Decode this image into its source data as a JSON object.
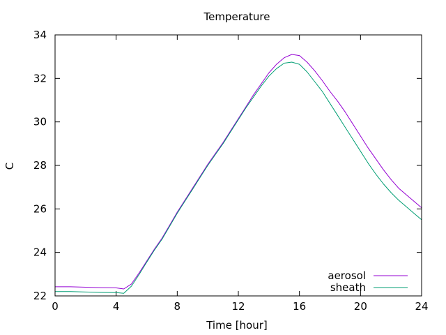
{
  "chart_data": {
    "type": "line",
    "title": "Temperature",
    "xlabel": "Time [hour]",
    "ylabel": "C",
    "xlim": [
      0,
      24
    ],
    "ylim": [
      22,
      34
    ],
    "xticks": [
      0,
      4,
      8,
      12,
      16,
      20,
      24
    ],
    "yticks": [
      22,
      24,
      26,
      28,
      30,
      32,
      34
    ],
    "grid": false,
    "legend_position": "bottom-right",
    "series": [
      {
        "name": "aerosol",
        "color": "#9400d3",
        "x": [
          0,
          1,
          2,
          3,
          4,
          4.5,
          5,
          5.5,
          6,
          6.5,
          7,
          7.5,
          8,
          8.5,
          9,
          9.5,
          10,
          10.5,
          11,
          11.5,
          12,
          12.5,
          13,
          13.5,
          14,
          14.5,
          15,
          15.5,
          16,
          16.5,
          17,
          17.5,
          18,
          18.5,
          19,
          19.5,
          20,
          20.5,
          21,
          21.5,
          22,
          22.5,
          23,
          23.5,
          24
        ],
        "y": [
          22.42,
          22.42,
          22.4,
          22.38,
          22.37,
          22.32,
          22.55,
          23.05,
          23.6,
          24.15,
          24.65,
          25.25,
          25.85,
          26.4,
          26.95,
          27.5,
          28.05,
          28.55,
          29.05,
          29.6,
          30.15,
          30.7,
          31.25,
          31.75,
          32.25,
          32.65,
          32.95,
          33.1,
          33.05,
          32.75,
          32.35,
          31.9,
          31.4,
          30.95,
          30.45,
          29.9,
          29.35,
          28.8,
          28.3,
          27.8,
          27.35,
          26.95,
          26.65,
          26.35,
          26.05
        ]
      },
      {
        "name": "sheath",
        "color": "#009e73",
        "x": [
          0,
          1,
          2,
          3,
          4,
          4.5,
          5,
          5.5,
          6,
          6.5,
          7,
          7.5,
          8,
          8.5,
          9,
          9.5,
          10,
          10.5,
          11,
          11.5,
          12,
          12.5,
          13,
          13.5,
          14,
          14.5,
          15,
          15.5,
          16,
          16.5,
          17,
          17.5,
          18,
          18.5,
          19,
          19.5,
          20,
          20.5,
          21,
          21.5,
          22,
          22.5,
          23,
          23.5,
          24
        ],
        "y": [
          22.2,
          22.2,
          22.18,
          22.16,
          22.15,
          22.12,
          22.45,
          22.98,
          23.55,
          24.1,
          24.6,
          25.2,
          25.8,
          26.35,
          26.9,
          27.45,
          28.0,
          28.5,
          29.0,
          29.55,
          30.1,
          30.65,
          31.15,
          31.65,
          32.1,
          32.45,
          32.7,
          32.75,
          32.65,
          32.3,
          31.85,
          31.4,
          30.85,
          30.3,
          29.75,
          29.2,
          28.65,
          28.1,
          27.6,
          27.15,
          26.75,
          26.4,
          26.1,
          25.8,
          25.5
        ]
      }
    ]
  }
}
